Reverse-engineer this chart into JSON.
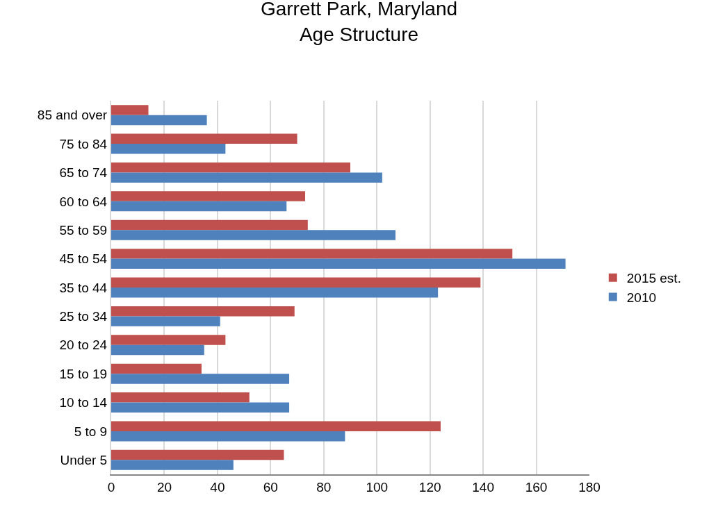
{
  "chart_data": {
    "type": "bar",
    "orientation": "horizontal",
    "title": "Garrett Park, Maryland\nAge Structure",
    "categories": [
      "85 and over",
      "75 to 84",
      "65 to 74",
      "60 to 64",
      "55 to 59",
      "45 to 54",
      "35 to 44",
      "25 to 34",
      "20 to 24",
      "15 to 19",
      "10 to 14",
      "5 to 9",
      "Under 5"
    ],
    "series": [
      {
        "name": "2015 est.",
        "color": "#c0504d",
        "values": [
          14,
          70,
          90,
          73,
          74,
          151,
          139,
          69,
          43,
          34,
          52,
          124,
          65
        ]
      },
      {
        "name": "2010",
        "color": "#4f81bd",
        "values": [
          36,
          43,
          102,
          66,
          107,
          171,
          123,
          41,
          35,
          67,
          67,
          88,
          46
        ]
      }
    ],
    "xlim": [
      0,
      180
    ],
    "xticks": [
      0,
      20,
      40,
      60,
      80,
      100,
      120,
      140,
      160,
      180
    ],
    "grid": "x",
    "legend": "right"
  }
}
